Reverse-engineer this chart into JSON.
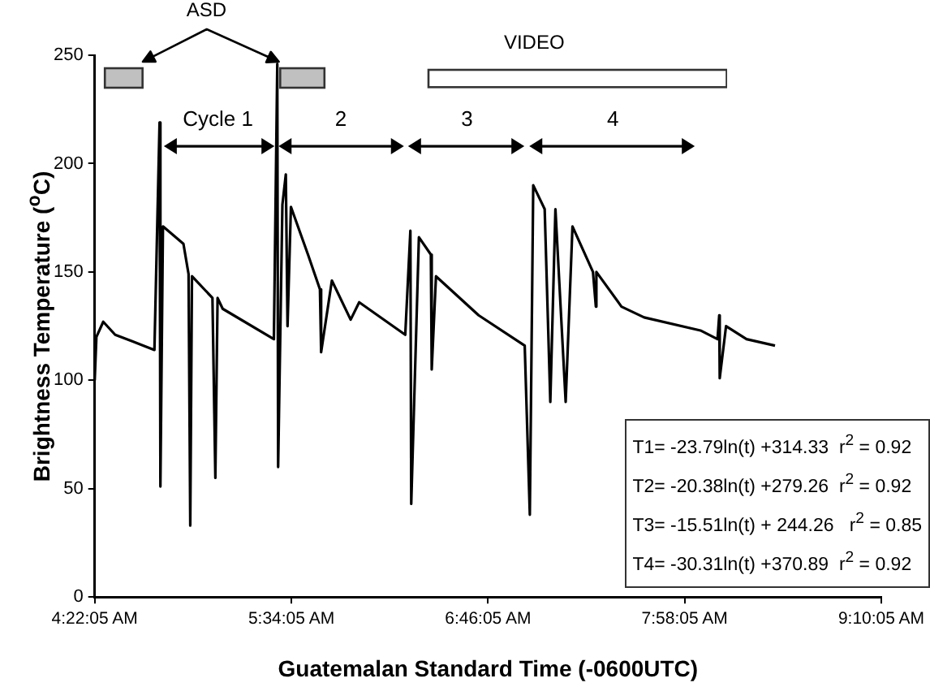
{
  "chart_data": {
    "type": "line",
    "xlabel": "Guatemalan Standard Time (-0600UTC)",
    "ylabel": "Brightness Temperature  ($^{o}$C)",
    "x": [
      4.3681,
      4.3785,
      4.4202,
      4.493,
      4.5972,
      4.7325,
      4.7638,
      4.769,
      4.7846,
      4.9095,
      4.9408,
      4.9512,
      4.9616,
      5.0866,
      5.1043,
      5.1178,
      5.149,
      5.4614,
      5.4822,
      5.4874,
      5.5134,
      5.5343,
      5.5447,
      5.5655,
      5.6696,
      5.7425,
      5.7498,
      5.8154,
      5.9299,
      5.982,
      6.2631,
      6.2944,
      6.2996,
      6.3464,
      6.4194,
      6.4246,
      6.4506,
      6.7109,
      6.9921,
      7.0233,
      7.0441,
      7.1139,
      7.1483,
      7.1795,
      7.242,
      7.2836,
      7.4086,
      7.4263,
      7.4294,
      7.5825,
      7.7209,
      8.0645,
      8.1686,
      8.179,
      8.1821,
      8.2207,
      8.3456,
      8.5195
    ],
    "series": [
      {
        "color": "#000000",
        "values": [
          100,
          120,
          127,
          121,
          118,
          114,
          219,
          51,
          171,
          163,
          149,
          33,
          148,
          138,
          55,
          138,
          133,
          119,
          246,
          60,
          181,
          195,
          125,
          180,
          158,
          142,
          113,
          146,
          128,
          136,
          121,
          169,
          43,
          166,
          158,
          105,
          148,
          130,
          116,
          38,
          190,
          179,
          90,
          179,
          90,
          171,
          150,
          134,
          150,
          134,
          129,
          123,
          119,
          130,
          101,
          125,
          119,
          116
        ]
      }
    ],
    "xlim": [
      4.3681,
      9.1681
    ],
    "xticks": [
      {
        "value": 4.3681,
        "label": "4:22:05 AM"
      },
      {
        "value": 5.5681,
        "label": "5:34:05 AM"
      },
      {
        "value": 6.7681,
        "label": "6:46:05 AM"
      },
      {
        "value": 7.9681,
        "label": "7:58:05 AM"
      },
      {
        "value": 9.1681,
        "label": "9:10:05 AM"
      }
    ],
    "ylim": [
      0,
      250
    ],
    "yticks": [
      0,
      50,
      100,
      150,
      200,
      250
    ],
    "grid": false,
    "legend": false,
    "marker": "none",
    "line_style": "solid",
    "annotations": [
      "Cycle 1",
      "2",
      "3",
      "4",
      "ASD",
      "VIDEO",
      "T1= -23.79ln(t) +314.33  r$^{2}$ = 0.92",
      "T2= -20.38ln(t) +279.26  r$^{2}$ = 0.92",
      "T3= -15.51ln(t) + 244.26   r$^{2}$ = 0.85",
      "T4= -30.31ln(t) +370.89  r$^{2}$ = 0.92"
    ]
  }
}
